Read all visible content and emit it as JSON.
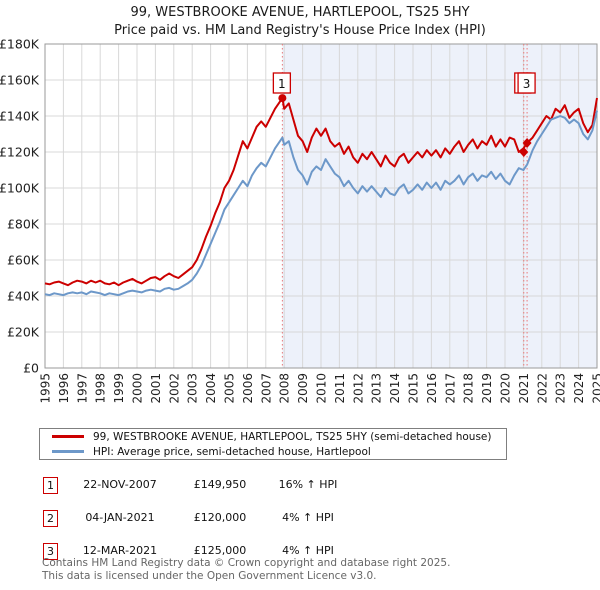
{
  "title": "99, WESTBROOKE AVENUE, HARTLEPOOL, TS25 5HY",
  "subtitle": "Price paid vs. HM Land Registry's House Price Index (HPI)",
  "colors": {
    "property_line": "#cc0000",
    "hpi_line": "#6d98c9",
    "shade": "#edf1fa",
    "grid": "#d8d8d8",
    "plot_border": "#9a9a9a",
    "dashed_event_line": "#e87a7a",
    "marker_box_border": "#cc0000",
    "tick_text": "#222222"
  },
  "chart_data": {
    "type": "line",
    "title": "Price paid vs. HM Land Registry's House Price Index (HPI)",
    "xlabel": "",
    "ylabel": "",
    "x_range": [
      1995,
      2025.08
    ],
    "y_range": [
      0,
      180000
    ],
    "grid": true,
    "legend_position": "bottom",
    "y_ticks": [
      "£0",
      "£20K",
      "£40K",
      "£60K",
      "£80K",
      "£100K",
      "£120K",
      "£140K",
      "£160K",
      "£180K"
    ],
    "x_ticks": [
      1995,
      1996,
      1997,
      1998,
      1999,
      2000,
      2001,
      2002,
      2003,
      2004,
      2005,
      2006,
      2007,
      2008,
      2009,
      2010,
      2011,
      2012,
      2013,
      2014,
      2015,
      2016,
      2017,
      2018,
      2019,
      2020,
      2021,
      2022,
      2023,
      2024,
      2025
    ],
    "shaded_region": {
      "from": 2007.9,
      "to": 2025.08
    },
    "x": [
      1995,
      1995.25,
      1995.5,
      1995.75,
      1996,
      1996.25,
      1996.5,
      1996.75,
      1997,
      1997.25,
      1997.5,
      1997.75,
      1998,
      1998.25,
      1998.5,
      1998.75,
      1999,
      1999.25,
      1999.5,
      1999.75,
      2000,
      2000.25,
      2000.5,
      2000.75,
      2001,
      2001.25,
      2001.5,
      2001.75,
      2002,
      2002.25,
      2002.5,
      2002.75,
      2003,
      2003.25,
      2003.5,
      2003.75,
      2004,
      2004.25,
      2004.5,
      2004.75,
      2005,
      2005.25,
      2005.5,
      2005.75,
      2006,
      2006.25,
      2006.5,
      2006.75,
      2007,
      2007.25,
      2007.5,
      2007.9,
      2008,
      2008.25,
      2008.5,
      2008.75,
      2009,
      2009.25,
      2009.5,
      2009.75,
      2010,
      2010.25,
      2010.5,
      2010.75,
      2011,
      2011.25,
      2011.5,
      2011.75,
      2012,
      2012.25,
      2012.5,
      2012.75,
      2013,
      2013.25,
      2013.5,
      2013.75,
      2014,
      2014.25,
      2014.5,
      2014.75,
      2015,
      2015.25,
      2015.5,
      2015.75,
      2016,
      2016.25,
      2016.5,
      2016.75,
      2017,
      2017.25,
      2017.5,
      2017.75,
      2018,
      2018.25,
      2018.5,
      2018.75,
      2019,
      2019.25,
      2019.5,
      2019.75,
      2020,
      2020.25,
      2020.5,
      2020.75,
      2021,
      2021.2,
      2021.5,
      2021.75,
      2022,
      2022.25,
      2022.5,
      2022.75,
      2023,
      2023.25,
      2023.5,
      2023.75,
      2024,
      2024.25,
      2024.5,
      2024.75,
      2025
    ],
    "series": [
      {
        "name": "99, WESTBROOKE AVENUE, HARTLEPOOL, TS25 5HY (semi-detached house)",
        "color": "#cc0000",
        "values": [
          47000,
          46500,
          47500,
          48000,
          47000,
          46000,
          47500,
          48500,
          48000,
          47000,
          48500,
          47500,
          48500,
          47000,
          46500,
          47500,
          46000,
          47500,
          48500,
          49500,
          48000,
          47000,
          48500,
          50000,
          50500,
          49000,
          51000,
          52500,
          51000,
          50000,
          52000,
          54000,
          56000,
          60000,
          66000,
          73000,
          79000,
          86000,
          92000,
          100000,
          104000,
          110000,
          118000,
          126000,
          122000,
          128000,
          134000,
          137000,
          134000,
          139000,
          144000,
          149950,
          144000,
          147000,
          138000,
          129000,
          126000,
          120000,
          128000,
          133000,
          129000,
          133000,
          126000,
          123000,
          125000,
          119000,
          123000,
          117000,
          114000,
          119000,
          116000,
          120000,
          116000,
          112000,
          118000,
          114000,
          112000,
          117000,
          119000,
          114000,
          117000,
          120000,
          117000,
          121000,
          118000,
          121000,
          117000,
          122000,
          119000,
          123000,
          126000,
          120000,
          124000,
          127000,
          122000,
          126000,
          124000,
          129000,
          123000,
          127000,
          123000,
          128000,
          127000,
          120000,
          122000,
          125000,
          128000,
          132000,
          136000,
          140000,
          138000,
          144000,
          142000,
          146000,
          139000,
          142000,
          144000,
          136000,
          131000,
          135000,
          150000
        ]
      },
      {
        "name": "HPI: Average price, semi-detached house, Hartlepool",
        "color": "#6d98c9",
        "values": [
          41000,
          40500,
          41500,
          41000,
          40500,
          41500,
          42000,
          41500,
          42000,
          41000,
          42500,
          42000,
          41500,
          40500,
          41500,
          41000,
          40500,
          41500,
          42500,
          43000,
          42500,
          42000,
          43000,
          43500,
          43000,
          42500,
          44000,
          44500,
          43500,
          44000,
          45500,
          47000,
          49000,
          52500,
          57000,
          63000,
          69000,
          75000,
          81000,
          88000,
          92000,
          96000,
          100000,
          104000,
          101000,
          107000,
          111000,
          114000,
          112000,
          117000,
          122000,
          128000,
          124000,
          126000,
          117000,
          110000,
          107000,
          102000,
          109000,
          112000,
          110000,
          116000,
          112000,
          108000,
          106000,
          101000,
          104000,
          100000,
          97000,
          101000,
          98000,
          101000,
          98000,
          95000,
          100000,
          97000,
          96000,
          100000,
          102000,
          97000,
          99000,
          102000,
          99000,
          103000,
          100000,
          103000,
          99000,
          104000,
          102000,
          104000,
          107000,
          102000,
          106000,
          108000,
          104000,
          107000,
          106000,
          109000,
          105000,
          108000,
          104000,
          102000,
          107000,
          111000,
          110000,
          113000,
          121000,
          126000,
          130000,
          134000,
          138000,
          139000,
          140000,
          139000,
          136000,
          138000,
          136000,
          130000,
          127000,
          132000,
          143000
        ]
      }
    ],
    "annotations": {
      "event_vlines": [
        2007.9,
        2021.02,
        2021.2
      ],
      "markers": [
        {
          "label": "1",
          "x": 2007.9,
          "y": 149950,
          "shape": "circle"
        },
        {
          "label": "2",
          "x": 2021.02,
          "y": 120000,
          "shape": "diamond"
        },
        {
          "label": "3",
          "x": 2021.2,
          "y": 125000,
          "shape": "diamond"
        }
      ],
      "label_boxes": [
        {
          "label": "1",
          "x": 2007.9
        },
        {
          "label": "3",
          "x": 2021.2
        }
      ]
    }
  },
  "legend": {
    "items": [
      {
        "label": "99, WESTBROOKE AVENUE, HARTLEPOOL, TS25 5HY (semi-detached house)",
        "color": "#cc0000"
      },
      {
        "label": "HPI: Average price, semi-detached house, Hartlepool",
        "color": "#6d98c9"
      }
    ]
  },
  "table": {
    "rows": [
      {
        "num": "1",
        "date": "22-NOV-2007",
        "price": "£149,950",
        "hpi": "16% ↑ HPI"
      },
      {
        "num": "2",
        "date": "04-JAN-2021",
        "price": "£120,000",
        "hpi": "4% ↑ HPI"
      },
      {
        "num": "3",
        "date": "12-MAR-2021",
        "price": "£125,000",
        "hpi": "4% ↑ HPI"
      }
    ]
  },
  "footer": {
    "line1": "Contains HM Land Registry data © Crown copyright and database right 2025.",
    "line2": "This data is licensed under the Open Government Licence v3.0."
  }
}
